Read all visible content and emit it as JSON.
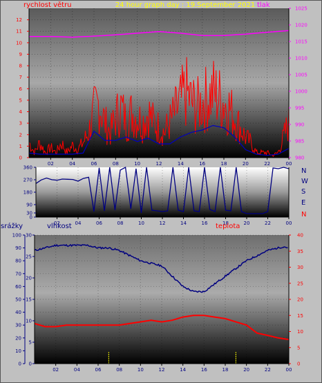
{
  "header": {
    "wind_label": "rychlost větru",
    "title": "24 hour graph day : 19.September 2021",
    "pressure_label": "tlak"
  },
  "bottom_labels": {
    "rain": "srážky",
    "humidity": "vlhkost",
    "temp": "teplota"
  },
  "compass_labels": [
    "N",
    "W",
    "S",
    "E",
    "N"
  ],
  "colors": {
    "wind": "#ff0000",
    "wind_avg": "#0000c0",
    "pressure": "#ff00ff",
    "direction": "#000080",
    "humidity": "#000080",
    "temperature": "#ff0000",
    "rain": "#ffff00",
    "title": "#ffff00",
    "wind_axis": "#ff0000",
    "pressure_axis": "#ff00ff",
    "humidity_axis": "#000080"
  },
  "chart_data": [
    {
      "type": "line",
      "name": "wind",
      "x_ticks": [
        "02",
        "04",
        "06",
        "08",
        "10",
        "12",
        "14",
        "16",
        "18",
        "20",
        "22",
        "00"
      ],
      "y_left": {
        "label": "rychlost větru",
        "ticks": [
          0,
          1,
          2,
          3,
          4,
          5,
          6,
          7,
          8,
          9,
          10,
          11,
          12
        ],
        "range": [
          0,
          13
        ]
      },
      "y_right": {
        "label": "tlak",
        "ticks": [
          980,
          985,
          990,
          995,
          1000,
          1005,
          1010,
          1015,
          1020,
          1025
        ],
        "range": [
          980,
          1025
        ]
      },
      "series": [
        {
          "name": "wind_gust",
          "hours": [
            0,
            0.5,
            1,
            1.5,
            2,
            2.5,
            3,
            3.5,
            4,
            4.5,
            5,
            5.5,
            6,
            6.5,
            7,
            7.5,
            8,
            8.5,
            9,
            9.5,
            10,
            10.5,
            11,
            11.5,
            12,
            12.5,
            13,
            13.5,
            14,
            14.5,
            15,
            15.5,
            16,
            16.5,
            17,
            17.5,
            18,
            18.5,
            19,
            19.5,
            20,
            20.5,
            21,
            21.5,
            22,
            22.5,
            23,
            23.5,
            24
          ],
          "values": [
            1.5,
            0.5,
            1.5,
            0.5,
            1,
            0.5,
            1.5,
            0.5,
            1.2,
            0.8,
            1.5,
            2.5,
            4.5,
            5.5,
            3.5,
            2.5,
            4,
            5,
            3.5,
            4.5,
            4,
            3.5,
            4.5,
            3.5,
            3,
            2.5,
            3.5,
            4.5,
            5.5,
            6.5,
            5.5,
            5,
            5.5,
            6,
            6.5,
            6,
            5.5,
            5,
            4,
            3,
            2,
            1.5,
            0.5,
            0.5,
            0.5,
            0.2,
            0.5,
            2,
            3.5
          ]
        },
        {
          "name": "wind_avg",
          "hours": [
            0,
            1,
            2,
            3,
            4,
            5,
            6,
            7,
            8,
            9,
            10,
            11,
            12,
            13,
            14,
            15,
            16,
            17,
            18,
            19,
            20,
            21,
            22,
            23,
            24
          ],
          "values": [
            0.4,
            0.3,
            0.3,
            0.3,
            0.3,
            0.4,
            2.3,
            1.5,
            1.5,
            1.8,
            1.4,
            1.7,
            1.2,
            1.2,
            1.8,
            2.2,
            2.4,
            2.8,
            2.6,
            1.8,
            0.7,
            0.3,
            0.2,
            0.3,
            0.8
          ]
        },
        {
          "name": "pressure",
          "hours": [
            0,
            2,
            4,
            6,
            8,
            10,
            12,
            14,
            16,
            18,
            20,
            22,
            24
          ],
          "values": [
            1016.5,
            1016.5,
            1016.3,
            1016.6,
            1017.0,
            1017.5,
            1018.0,
            1017.5,
            1016.8,
            1016.8,
            1017.2,
            1017.8,
            1018.3
          ]
        }
      ]
    },
    {
      "type": "line",
      "name": "wind_direction",
      "x_ticks": [
        "02",
        "04",
        "06",
        "08",
        "10",
        "12",
        "14",
        "16",
        "18",
        "20",
        "22",
        "00"
      ],
      "y_ticks": [
        0,
        30,
        90,
        180,
        270,
        360
      ],
      "range": [
        0,
        360
      ],
      "hours": [
        0,
        0.5,
        1,
        1.5,
        2,
        2.5,
        3,
        3.5,
        4,
        4.5,
        5,
        5.5,
        6,
        6.5,
        7,
        7.5,
        8,
        8.5,
        9,
        9.5,
        10,
        10.5,
        11,
        11.5,
        12,
        12.5,
        13,
        13.5,
        14,
        14.5,
        15,
        15.5,
        16,
        16.5,
        17,
        17.5,
        18,
        18.5,
        19,
        19.5,
        20,
        20.5,
        21,
        21.5,
        22,
        22.5,
        23,
        23.5,
        24
      ],
      "values": [
        250,
        280,
        265,
        275,
        260,
        285,
        255,
        275,
        265,
        280,
        270,
        40,
        355,
        45,
        360,
        50,
        340,
        360,
        60,
        350,
        30,
        360,
        50,
        45,
        40,
        45,
        360,
        50,
        40,
        360,
        45,
        40,
        360,
        55,
        40,
        360,
        50,
        45,
        360,
        40,
        25,
        25,
        25,
        25,
        40,
        355,
        350,
        360,
        350
      ]
    },
    {
      "type": "line",
      "name": "humidity_temperature_rain",
      "x_ticks": [
        "02",
        "04",
        "06",
        "08",
        "10",
        "12",
        "14",
        "16",
        "18",
        "20",
        "22",
        "00"
      ],
      "y_rain": {
        "label": "srážky",
        "ticks": [
          0,
          10,
          20,
          30,
          40,
          50,
          60,
          70,
          80,
          90,
          100
        ],
        "range": [
          0,
          100
        ]
      },
      "y_humidity": {
        "label": "vlhkost",
        "ticks": [
          0,
          5,
          10,
          15,
          20,
          25,
          30
        ],
        "range": [
          0,
          30
        ]
      },
      "y_temperature": {
        "label": "teplota",
        "ticks": [
          0,
          5,
          10,
          15,
          20,
          25,
          30,
          35,
          40
        ],
        "range": [
          0,
          40
        ]
      },
      "series": [
        {
          "name": "humidity",
          "hours": [
            0,
            1,
            2,
            3,
            4,
            5,
            6,
            7,
            8,
            9,
            10,
            11,
            12,
            13,
            14,
            15,
            16,
            17,
            18,
            19,
            20,
            21,
            22,
            23,
            23.5,
            24
          ],
          "values": [
            88,
            90,
            92,
            92,
            92,
            92,
            90,
            90,
            88,
            84,
            80,
            78,
            76,
            68,
            60,
            56,
            56,
            62,
            68,
            74,
            80,
            84,
            88,
            90,
            91,
            90
          ]
        },
        {
          "name": "temperature",
          "hours": [
            0,
            1,
            2,
            3,
            4,
            5,
            6,
            7,
            8,
            9,
            10,
            11,
            12,
            13,
            14,
            15,
            16,
            17,
            18,
            19,
            20,
            21,
            22,
            23,
            24
          ],
          "values": [
            12.5,
            11.5,
            11.5,
            12,
            12,
            12,
            12,
            12,
            12,
            12.5,
            13,
            13.5,
            13,
            13.5,
            14.5,
            15,
            15,
            14.5,
            14,
            13,
            12,
            9.5,
            8.8,
            8,
            7.5
          ]
        },
        {
          "name": "rain",
          "hours": [
            7,
            19
          ],
          "values": [
            9,
            9
          ]
        }
      ]
    }
  ]
}
